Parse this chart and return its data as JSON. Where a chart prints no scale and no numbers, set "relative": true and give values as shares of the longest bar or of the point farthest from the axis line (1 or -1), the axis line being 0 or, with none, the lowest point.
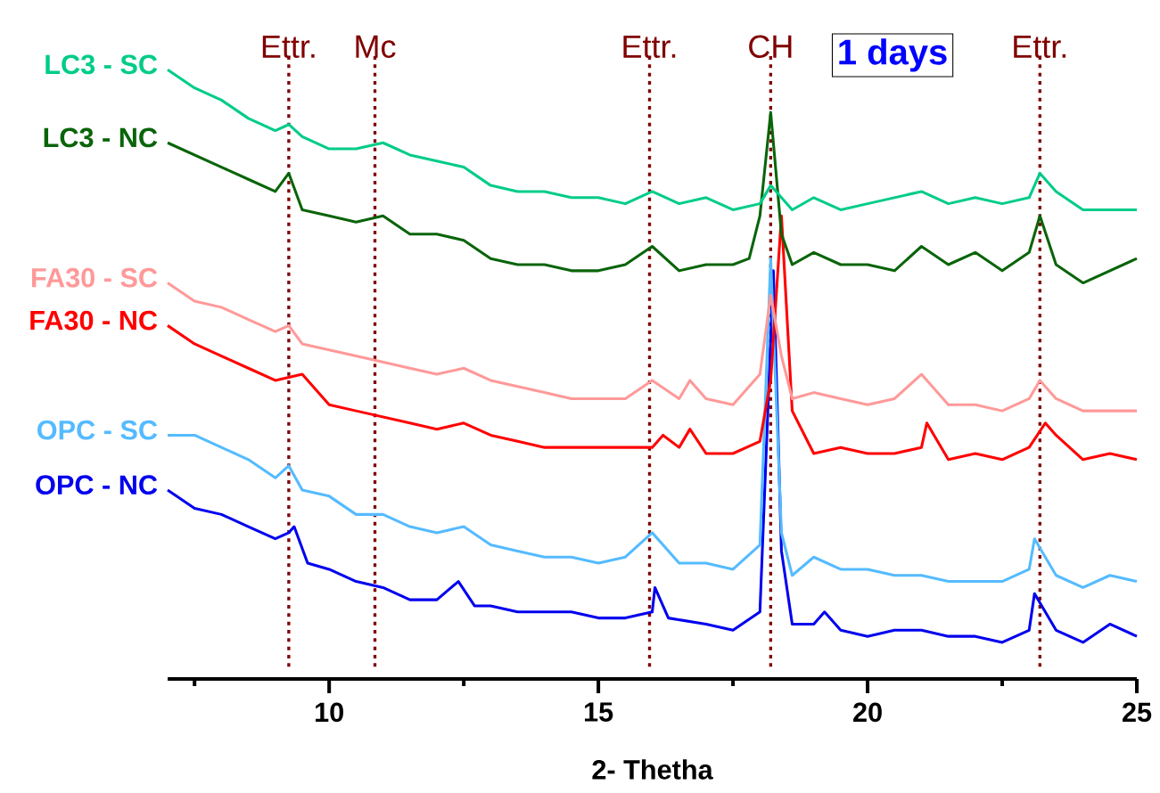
{
  "chart_data": {
    "type": "line",
    "relative": true,
    "xlabel": "2- Thetha",
    "annotations": [
      "1 days"
    ],
    "xlim": [
      7,
      25
    ],
    "xticks": [
      {
        "value": 7.5,
        "label": null
      },
      10,
      {
        "value": 12.5,
        "label": null
      },
      15,
      {
        "value": 17.5,
        "label": null
      },
      20,
      {
        "value": 22.5,
        "label": null
      },
      25
    ],
    "tick_labels": "x",
    "ref_lines": [
      {
        "axis": "x",
        "value": 9.25,
        "label": "Ettr.",
        "color": "#800000",
        "line_style": "dotted"
      },
      {
        "axis": "x",
        "value": 10.85,
        "label": "Mc",
        "color": "#800000",
        "line_style": "dotted"
      },
      {
        "axis": "x",
        "value": 15.95,
        "label": "Ettr.",
        "color": "#800000",
        "line_style": "dotted"
      },
      {
        "axis": "x",
        "value": 18.2,
        "label": "CH",
        "color": "#800000",
        "line_style": "dotted"
      },
      {
        "axis": "x",
        "value": 23.2,
        "label": "Ettr.",
        "color": "#800000",
        "line_style": "dotted"
      }
    ],
    "series": [
      {
        "name": "LC3 - SC",
        "color": "#00cc88",
        "x": [
          7,
          7.5,
          8,
          8.5,
          9,
          9.25,
          9.5,
          10,
          10.5,
          11,
          11.5,
          12,
          12.5,
          13,
          13.5,
          14,
          14.5,
          15,
          15.5,
          16,
          16.5,
          17,
          17.5,
          18,
          18.2,
          18.4,
          18.6,
          19,
          19.5,
          20,
          20.5,
          21,
          21.5,
          22,
          22.5,
          23,
          23.2,
          23.5,
          24,
          24.5,
          25
        ],
        "values": [
          1.0,
          0.97,
          0.95,
          0.92,
          0.9,
          0.91,
          0.89,
          0.87,
          0.87,
          0.88,
          0.86,
          0.85,
          0.84,
          0.81,
          0.8,
          0.8,
          0.79,
          0.79,
          0.78,
          0.8,
          0.78,
          0.79,
          0.77,
          0.78,
          0.81,
          0.79,
          0.77,
          0.79,
          0.77,
          0.78,
          0.79,
          0.8,
          0.78,
          0.79,
          0.78,
          0.79,
          0.83,
          0.8,
          0.77,
          0.77,
          0.77
        ]
      },
      {
        "name": "LC3 - NC",
        "color": "#0a640a",
        "x": [
          7,
          7.5,
          8,
          8.5,
          9,
          9.25,
          9.5,
          10,
          10.5,
          11,
          11.5,
          12,
          12.5,
          13,
          13.5,
          14,
          14.5,
          15,
          15.5,
          16,
          16.5,
          17,
          17.5,
          17.8,
          18,
          18.2,
          18.4,
          18.6,
          19,
          19.5,
          20,
          20.5,
          21,
          21.5,
          22,
          22.5,
          23,
          23.2,
          23.5,
          24,
          24.5,
          25
        ],
        "values": [
          0.88,
          0.86,
          0.84,
          0.82,
          0.8,
          0.83,
          0.77,
          0.76,
          0.75,
          0.76,
          0.73,
          0.73,
          0.72,
          0.69,
          0.68,
          0.68,
          0.67,
          0.67,
          0.68,
          0.71,
          0.67,
          0.68,
          0.68,
          0.69,
          0.76,
          0.93,
          0.73,
          0.68,
          0.7,
          0.68,
          0.68,
          0.67,
          0.71,
          0.68,
          0.7,
          0.67,
          0.7,
          0.76,
          0.68,
          0.65,
          0.67,
          0.69
        ]
      },
      {
        "name": "FA30 - SC",
        "color": "#ff9999",
        "x": [
          7,
          7.5,
          8,
          8.5,
          9,
          9.25,
          9.5,
          10,
          10.5,
          11,
          11.5,
          12,
          12.5,
          13,
          13.5,
          14,
          14.5,
          15,
          15.5,
          16,
          16.5,
          16.7,
          17,
          17.5,
          18,
          18.2,
          18.4,
          18.6,
          19,
          19.5,
          20,
          20.5,
          21,
          21.5,
          22,
          22.5,
          23,
          23.2,
          23.5,
          24,
          24.5,
          25
        ],
        "values": [
          0.65,
          0.62,
          0.61,
          0.59,
          0.57,
          0.58,
          0.55,
          0.54,
          0.53,
          0.52,
          0.51,
          0.5,
          0.51,
          0.49,
          0.48,
          0.47,
          0.46,
          0.46,
          0.46,
          0.49,
          0.46,
          0.49,
          0.46,
          0.45,
          0.5,
          0.63,
          0.53,
          0.46,
          0.47,
          0.46,
          0.45,
          0.46,
          0.5,
          0.45,
          0.45,
          0.44,
          0.46,
          0.49,
          0.46,
          0.44,
          0.44,
          0.44
        ]
      },
      {
        "name": "FA30 - NC",
        "color": "#ff0000",
        "x": [
          7,
          7.5,
          8,
          8.5,
          9,
          9.5,
          10,
          10.5,
          11,
          11.5,
          12,
          12.5,
          13,
          13.5,
          14,
          14.5,
          15,
          15.5,
          16,
          16.2,
          16.5,
          16.7,
          17,
          17.5,
          18,
          18.2,
          18.4,
          18.6,
          19,
          19.5,
          20,
          20.5,
          21,
          21.1,
          21.5,
          22,
          22.5,
          23,
          23.3,
          23.5,
          24,
          24.5,
          25
        ],
        "values": [
          0.58,
          0.55,
          0.53,
          0.51,
          0.49,
          0.5,
          0.45,
          0.44,
          0.43,
          0.42,
          0.41,
          0.42,
          0.4,
          0.39,
          0.38,
          0.38,
          0.38,
          0.38,
          0.38,
          0.4,
          0.38,
          0.41,
          0.37,
          0.37,
          0.39,
          0.49,
          0.76,
          0.44,
          0.37,
          0.38,
          0.37,
          0.37,
          0.38,
          0.42,
          0.36,
          0.37,
          0.36,
          0.38,
          0.42,
          0.4,
          0.36,
          0.37,
          0.36
        ]
      },
      {
        "name": "OPC - SC",
        "color": "#55bbff",
        "x": [
          7,
          7.5,
          8,
          8.5,
          9,
          9.25,
          9.5,
          10,
          10.5,
          11,
          11.5,
          12,
          12.5,
          13,
          13.5,
          14,
          14.5,
          15,
          15.5,
          16,
          16.5,
          17,
          17.5,
          18,
          18.2,
          18.4,
          18.6,
          19,
          19.5,
          20,
          20.5,
          21,
          21.5,
          22,
          22.5,
          23,
          23.1,
          23.5,
          24,
          24.5,
          25
        ],
        "values": [
          0.4,
          0.4,
          0.38,
          0.36,
          0.33,
          0.35,
          0.31,
          0.3,
          0.27,
          0.27,
          0.25,
          0.24,
          0.25,
          0.22,
          0.21,
          0.2,
          0.2,
          0.19,
          0.2,
          0.24,
          0.19,
          0.19,
          0.18,
          0.22,
          0.69,
          0.24,
          0.17,
          0.2,
          0.18,
          0.18,
          0.17,
          0.17,
          0.16,
          0.16,
          0.16,
          0.18,
          0.23,
          0.17,
          0.15,
          0.17,
          0.16
        ]
      },
      {
        "name": "OPC - NC",
        "color": "#0000ee",
        "x": [
          7,
          7.5,
          8,
          8.5,
          9,
          9.25,
          9.35,
          9.6,
          10,
          10.5,
          11,
          11.5,
          12,
          12.4,
          12.7,
          13,
          13.5,
          14,
          14.5,
          15,
          15.5,
          16,
          16.05,
          16.3,
          17,
          17.5,
          18,
          18.25,
          18.4,
          18.6,
          19,
          19.2,
          19.5,
          20,
          20.5,
          21,
          21.5,
          22,
          22.5,
          23,
          23.1,
          23.5,
          24,
          24.5,
          25
        ],
        "values": [
          0.31,
          0.28,
          0.27,
          0.25,
          0.23,
          0.24,
          0.25,
          0.19,
          0.18,
          0.16,
          0.15,
          0.13,
          0.13,
          0.16,
          0.12,
          0.12,
          0.11,
          0.11,
          0.11,
          0.1,
          0.1,
          0.11,
          0.15,
          0.1,
          0.09,
          0.08,
          0.11,
          0.67,
          0.21,
          0.09,
          0.09,
          0.11,
          0.08,
          0.07,
          0.08,
          0.08,
          0.07,
          0.07,
          0.06,
          0.08,
          0.14,
          0.08,
          0.06,
          0.09,
          0.07
        ]
      }
    ]
  }
}
